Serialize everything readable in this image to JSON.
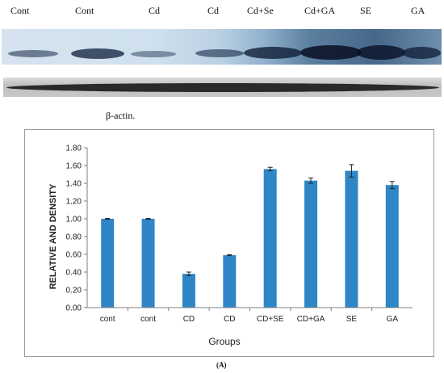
{
  "blot_lane_labels": [
    "Cont",
    "Cont",
    "Cd",
    "Cd",
    "Cd+Se",
    "Cd+GA",
    "SE",
    "GA"
  ],
  "loading_control_label": "β-actin.",
  "panel_label": "(A)",
  "colors": {
    "bar": "#2f86c7",
    "axis": "#7f7f7f"
  },
  "chart_data": {
    "type": "bar",
    "categories": [
      "cont",
      "cont",
      "CD",
      "CD",
      "CD+SE",
      "CD+GA",
      "SE",
      "GA"
    ],
    "values": [
      1.0,
      1.0,
      0.38,
      0.59,
      1.56,
      1.43,
      1.54,
      1.38
    ],
    "errors": [
      0.005,
      0.005,
      0.02,
      0.005,
      0.02,
      0.03,
      0.07,
      0.04
    ],
    "xlabel": "Groups",
    "ylabel": "RELATIVE AND DENSITY",
    "ylim": [
      0,
      1.8
    ],
    "yticks": [
      "0.00",
      "0.20",
      "0.40",
      "0.60",
      "0.80",
      "1.00",
      "1.20",
      "1.40",
      "1.60",
      "1.80"
    ],
    "grid": false,
    "error_bars": true
  }
}
